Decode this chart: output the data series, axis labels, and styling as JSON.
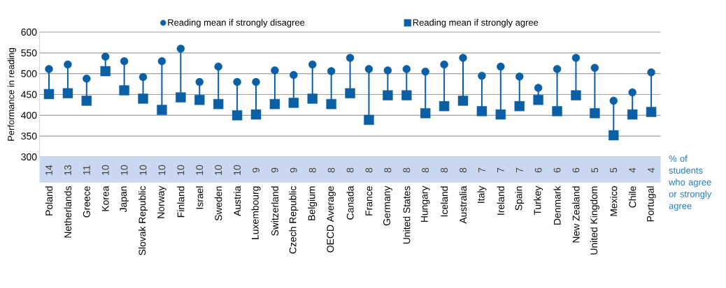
{
  "chart_data": {
    "type": "scatter",
    "ylabel": "Performance in reading",
    "categories": [
      "Poland",
      "Netherlands",
      "Greece",
      "Korea",
      "Japan",
      "Slovak Republic",
      "Norway",
      "Finland",
      "Israel",
      "Sweden",
      "Austria",
      "Luxembourg",
      "Switzerland",
      "Czech Republic",
      "Belgium",
      "OECD Average",
      "Canada",
      "France",
      "Germany",
      "United States",
      "Hungary",
      "Iceland",
      "Australia",
      "Italy",
      "Ireland",
      "Spain",
      "Turkey",
      "Denmark",
      "New Zealand",
      "United Kingdom",
      "Mexico",
      "Chile",
      "Portugal"
    ],
    "series": [
      {
        "name": "Reading mean if strongly disagree",
        "color": "#0b5fa5",
        "marker": "circle",
        "values": [
          511,
          522,
          488,
          541,
          530,
          492,
          530,
          560,
          480,
          517,
          480,
          480,
          508,
          497,
          522,
          506,
          538,
          511,
          508,
          511,
          505,
          522,
          538,
          495,
          517,
          493,
          466,
          511,
          538,
          514,
          435,
          455,
          503
        ]
      },
      {
        "name": "Reading mean if strongly agree",
        "color": "#0b5fa5",
        "marker": "square",
        "values": [
          451,
          453,
          435,
          506,
          460,
          440,
          413,
          443,
          437,
          427,
          400,
          402,
          427,
          430,
          440,
          427,
          453,
          389,
          448,
          448,
          405,
          422,
          435,
          410,
          402,
          422,
          437,
          410,
          448,
          405,
          352,
          402,
          408
        ]
      }
    ],
    "ylim": [
      300,
      600
    ],
    "yticks": [
      300,
      350,
      400,
      450,
      500,
      550,
      600
    ],
    "grid": "y",
    "legend": "top",
    "annotations": [
      "14",
      "13",
      "11",
      "10",
      "10",
      "10",
      "10",
      "10",
      "10",
      "10",
      "10",
      "9",
      "9",
      "9",
      "8",
      "8",
      "8",
      "8",
      "8",
      "8",
      "8",
      "8",
      "8",
      "7",
      "7",
      "7",
      "6",
      "6",
      "6",
      "5",
      "5",
      "4",
      "4",
      "% of students who agree or strongly agree"
    ]
  }
}
